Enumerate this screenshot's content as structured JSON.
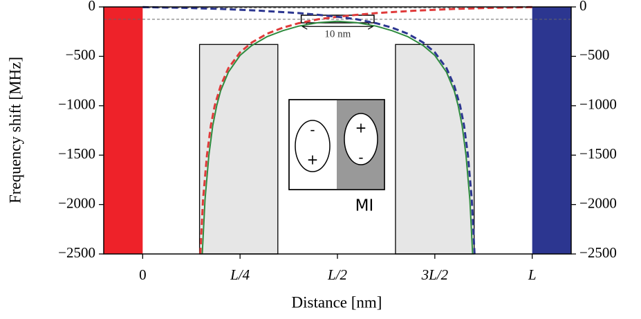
{
  "chart_data": {
    "type": "line",
    "xlabel": "Distance [nm]",
    "ylabel": "Frequency shift [MHz]",
    "xlim": [
      -0.1,
      1.1
    ],
    "ylim": [
      -2500,
      0
    ],
    "y2lim": [
      -2500,
      0
    ],
    "xticks": [
      {
        "value": 0,
        "label": "0"
      },
      {
        "value": 0.25,
        "label": "L/4"
      },
      {
        "value": 0.5,
        "label": "L/2"
      },
      {
        "value": 0.75,
        "label": "3L/2"
      },
      {
        "value": 1,
        "label": "L"
      }
    ],
    "yticks": [
      0,
      {
        "value": -500,
        "label": "−500"
      },
      {
        "value": -1000,
        "label": "−1000"
      },
      {
        "value": -1500,
        "label": "−1500"
      },
      {
        "value": -2000,
        "label": "−2000"
      },
      {
        "value": -2500,
        "label": "−2500"
      }
    ],
    "y2ticks": [
      0,
      {
        "value": -500,
        "label": "−500"
      },
      {
        "value": -1000,
        "label": "−1000"
      },
      {
        "value": -1500,
        "label": "−1500"
      },
      {
        "value": -2000,
        "label": "−2000"
      },
      {
        "value": -2500,
        "label": "−2500"
      }
    ],
    "regions": [
      {
        "x": [
          -0.1,
          0
        ],
        "color": "#ee2229"
      },
      {
        "x": [
          1,
          1.1
        ],
        "color": "#2c3690"
      }
    ],
    "boxes": [
      {
        "x": [
          0.146,
          0.347
        ],
        "y": [
          -380,
          -2500
        ]
      },
      {
        "x": [
          0.649,
          0.851
        ],
        "y": [
          -380,
          -2500
        ]
      }
    ],
    "hlines": [
      {
        "y": -10,
        "x": [
          0,
          1
        ]
      },
      {
        "y": -125,
        "x": [
          -0.1,
          1.1
        ]
      }
    ],
    "zoom_box": {
      "x": [
        0.407,
        0.594
      ],
      "y": [
        -84,
        -161
      ]
    },
    "scale_bar": {
      "label": "10 nm",
      "x": [
        0.41,
        0.591
      ],
      "y": -240
    },
    "series": [
      {
        "color": "#2e8b3e",
        "dash": false,
        "x": [
          0.153,
          0.16,
          0.17,
          0.18,
          0.19,
          0.2,
          0.22,
          0.25,
          0.28,
          0.32,
          0.36,
          0.4,
          0.45,
          0.5,
          0.55,
          0.6,
          0.64,
          0.68,
          0.72,
          0.75,
          0.78,
          0.8,
          0.81,
          0.82,
          0.83,
          0.84,
          0.847
        ],
        "values": [
          -2500,
          -1950,
          -1500,
          -1200,
          -1000,
          -850,
          -660,
          -490,
          -390,
          -300,
          -240,
          -195,
          -160,
          -145,
          -160,
          -195,
          -240,
          -300,
          -390,
          -490,
          -660,
          -850,
          -1000,
          -1200,
          -1500,
          -1950,
          -2500
        ]
      },
      {
        "color": "#e03a3a",
        "dash": true,
        "x": [
          0.148,
          0.155,
          0.165,
          0.175,
          0.185,
          0.2,
          0.22,
          0.25,
          0.28,
          0.32,
          0.36,
          0.4,
          0.45,
          0.5,
          0.55,
          0.6,
          0.7,
          0.8,
          0.9,
          1.0
        ],
        "values": [
          -2500,
          -1950,
          -1500,
          -1200,
          -1000,
          -800,
          -620,
          -460,
          -360,
          -270,
          -210,
          -165,
          -125,
          -100,
          -80,
          -62,
          -38,
          -20,
          -9,
          -2
        ]
      },
      {
        "color": "#2c3690",
        "dash": true,
        "x": [
          0.0,
          0.1,
          0.2,
          0.3,
          0.4,
          0.45,
          0.5,
          0.55,
          0.6,
          0.64,
          0.68,
          0.72,
          0.75,
          0.78,
          0.8,
          0.815,
          0.825,
          0.835,
          0.845,
          0.852
        ],
        "values": [
          -2,
          -9,
          -20,
          -38,
          -62,
          -80,
          -100,
          -125,
          -165,
          -210,
          -270,
          -360,
          -460,
          -620,
          -800,
          -1000,
          -1200,
          -1500,
          -1950,
          -2500
        ]
      }
    ],
    "inset": {
      "left_top": "-",
      "left_bottom": "+",
      "right_top": "+",
      "right_bottom": "-",
      "label": "MI"
    }
  }
}
